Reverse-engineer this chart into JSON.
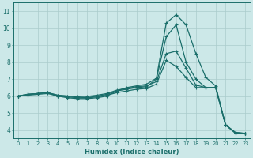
{
  "xlabel": "Humidex (Indice chaleur)",
  "bg_color": "#cce8e8",
  "line_color": "#1a6e6a",
  "grid_color": "#aacccc",
  "xlim": [
    -0.5,
    23.5
  ],
  "ylim": [
    3.5,
    11.5
  ],
  "xticks": [
    0,
    1,
    2,
    3,
    4,
    5,
    6,
    7,
    8,
    9,
    10,
    11,
    12,
    13,
    14,
    15,
    16,
    17,
    18,
    19,
    20,
    21,
    22,
    23
  ],
  "yticks": [
    4,
    5,
    6,
    7,
    8,
    9,
    10,
    11
  ],
  "lines": [
    [
      6.0,
      6.1,
      6.15,
      6.2,
      6.0,
      5.9,
      5.85,
      5.85,
      5.9,
      6.0,
      6.3,
      6.5,
      6.6,
      6.7,
      7.05,
      10.3,
      10.8,
      10.2,
      8.5,
      7.1,
      6.6,
      4.3,
      3.85,
      3.8
    ],
    [
      6.0,
      6.1,
      6.15,
      6.2,
      6.05,
      6.0,
      5.95,
      5.9,
      6.0,
      6.1,
      6.3,
      6.4,
      6.5,
      6.55,
      7.0,
      9.5,
      10.2,
      8.0,
      7.0,
      6.5,
      6.5,
      4.3,
      3.8,
      3.8
    ],
    [
      6.0,
      6.1,
      6.15,
      6.2,
      6.05,
      6.0,
      5.98,
      5.98,
      6.05,
      6.15,
      6.35,
      6.45,
      6.55,
      6.6,
      6.85,
      8.5,
      8.65,
      7.65,
      6.65,
      6.5,
      6.5,
      4.3,
      3.85,
      3.8
    ],
    [
      6.0,
      6.05,
      6.1,
      6.15,
      6.0,
      5.95,
      5.9,
      5.9,
      5.95,
      6.05,
      6.2,
      6.3,
      6.4,
      6.45,
      6.7,
      8.1,
      7.75,
      7.1,
      6.5,
      6.5,
      6.5,
      4.3,
      3.85,
      3.8
    ]
  ]
}
